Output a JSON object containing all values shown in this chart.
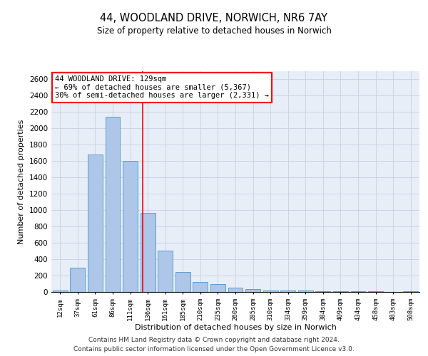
{
  "title1": "44, WOODLAND DRIVE, NORWICH, NR6 7AY",
  "title2": "Size of property relative to detached houses in Norwich",
  "xlabel": "Distribution of detached houses by size in Norwich",
  "ylabel": "Number of detached properties",
  "categories": [
    "12sqm",
    "37sqm",
    "61sqm",
    "86sqm",
    "111sqm",
    "136sqm",
    "161sqm",
    "185sqm",
    "210sqm",
    "235sqm",
    "260sqm",
    "285sqm",
    "310sqm",
    "334sqm",
    "359sqm",
    "384sqm",
    "409sqm",
    "434sqm",
    "458sqm",
    "483sqm",
    "508sqm"
  ],
  "values": [
    15,
    295,
    1680,
    2140,
    1600,
    970,
    505,
    245,
    120,
    100,
    50,
    35,
    20,
    15,
    15,
    10,
    5,
    10,
    5,
    2,
    10
  ],
  "bar_color": "#aec6e8",
  "bar_edge_color": "#5a9fd4",
  "vline_x": 4.72,
  "vline_color": "red",
  "annotation_text": "44 WOODLAND DRIVE: 129sqm\n← 69% of detached houses are smaller (5,367)\n30% of semi-detached houses are larger (2,331) →",
  "annotation_box_color": "white",
  "annotation_box_edge_color": "red",
  "ylim": [
    0,
    2700
  ],
  "yticks": [
    0,
    200,
    400,
    600,
    800,
    1000,
    1200,
    1400,
    1600,
    1800,
    2000,
    2200,
    2400,
    2600
  ],
  "grid_color": "#c8d0e0",
  "background_color": "#e8eef8",
  "footer1": "Contains HM Land Registry data © Crown copyright and database right 2024.",
  "footer2": "Contains public sector information licensed under the Open Government Licence v3.0."
}
